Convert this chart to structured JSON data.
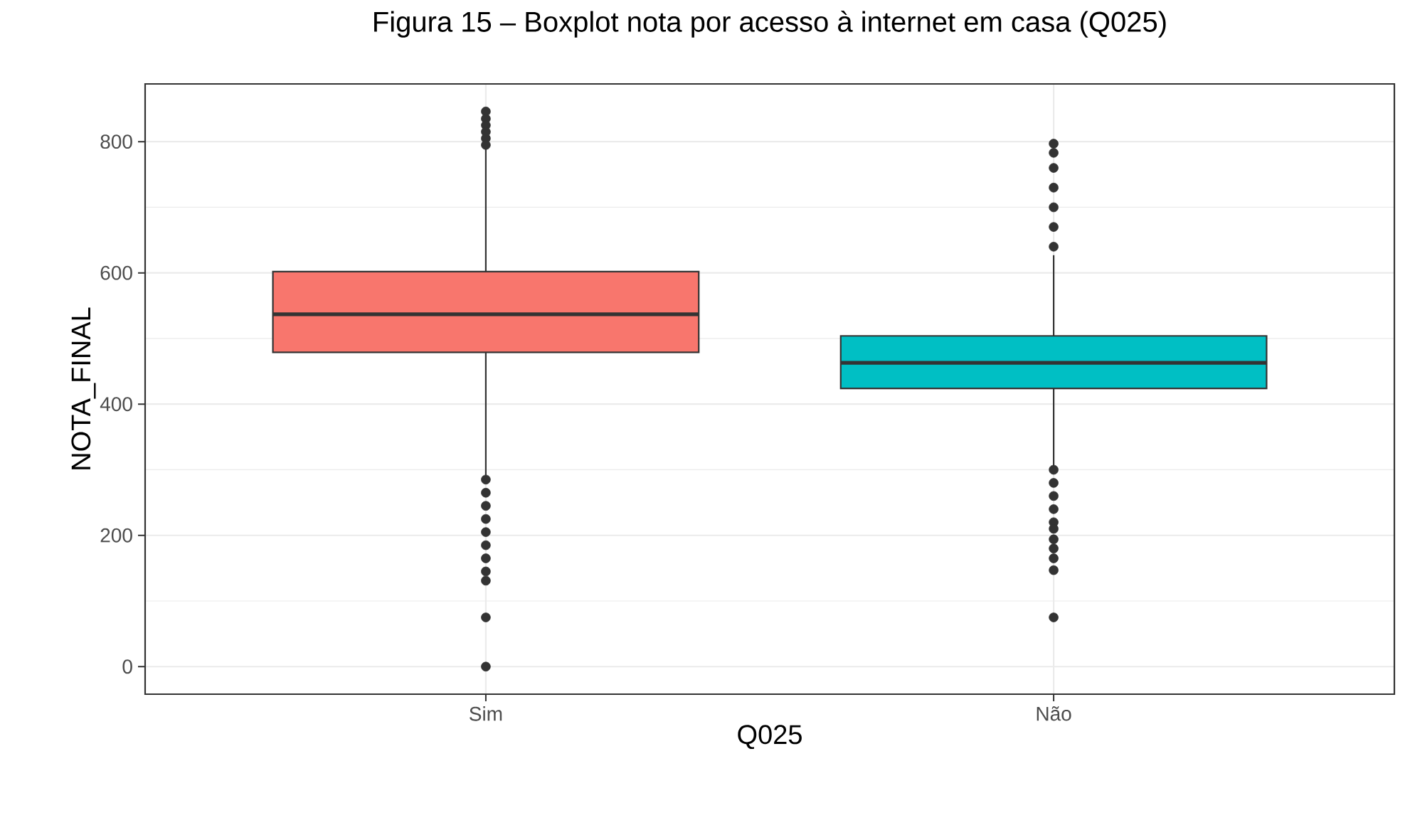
{
  "chart_data": {
    "type": "box",
    "title": "Figura 15 – Boxplot nota por acesso à internet em casa (Q025)",
    "xlabel": "Q025",
    "ylabel": "NOTA_FINAL",
    "categories": [
      "Sim",
      "Não"
    ],
    "colors": [
      "#f8766d",
      "#00bfc4"
    ],
    "boxes": [
      {
        "low": 291,
        "q1": 479,
        "median": 537,
        "q3": 602,
        "high": 790,
        "outliers": [
          846,
          835,
          825,
          815,
          805,
          795,
          285,
          265,
          245,
          225,
          205,
          185,
          165,
          145,
          131,
          75,
          0
        ]
      },
      {
        "low": 304,
        "q1": 424,
        "median": 463,
        "q3": 504,
        "high": 627,
        "outliers": [
          797,
          783,
          760,
          730,
          700,
          670,
          640,
          300,
          280,
          260,
          240,
          220,
          210,
          194,
          180,
          165,
          147,
          75
        ]
      }
    ],
    "ylim": [
      -42,
      888
    ],
    "yticks": [
      0,
      200,
      400,
      600,
      800
    ],
    "grid": true
  }
}
